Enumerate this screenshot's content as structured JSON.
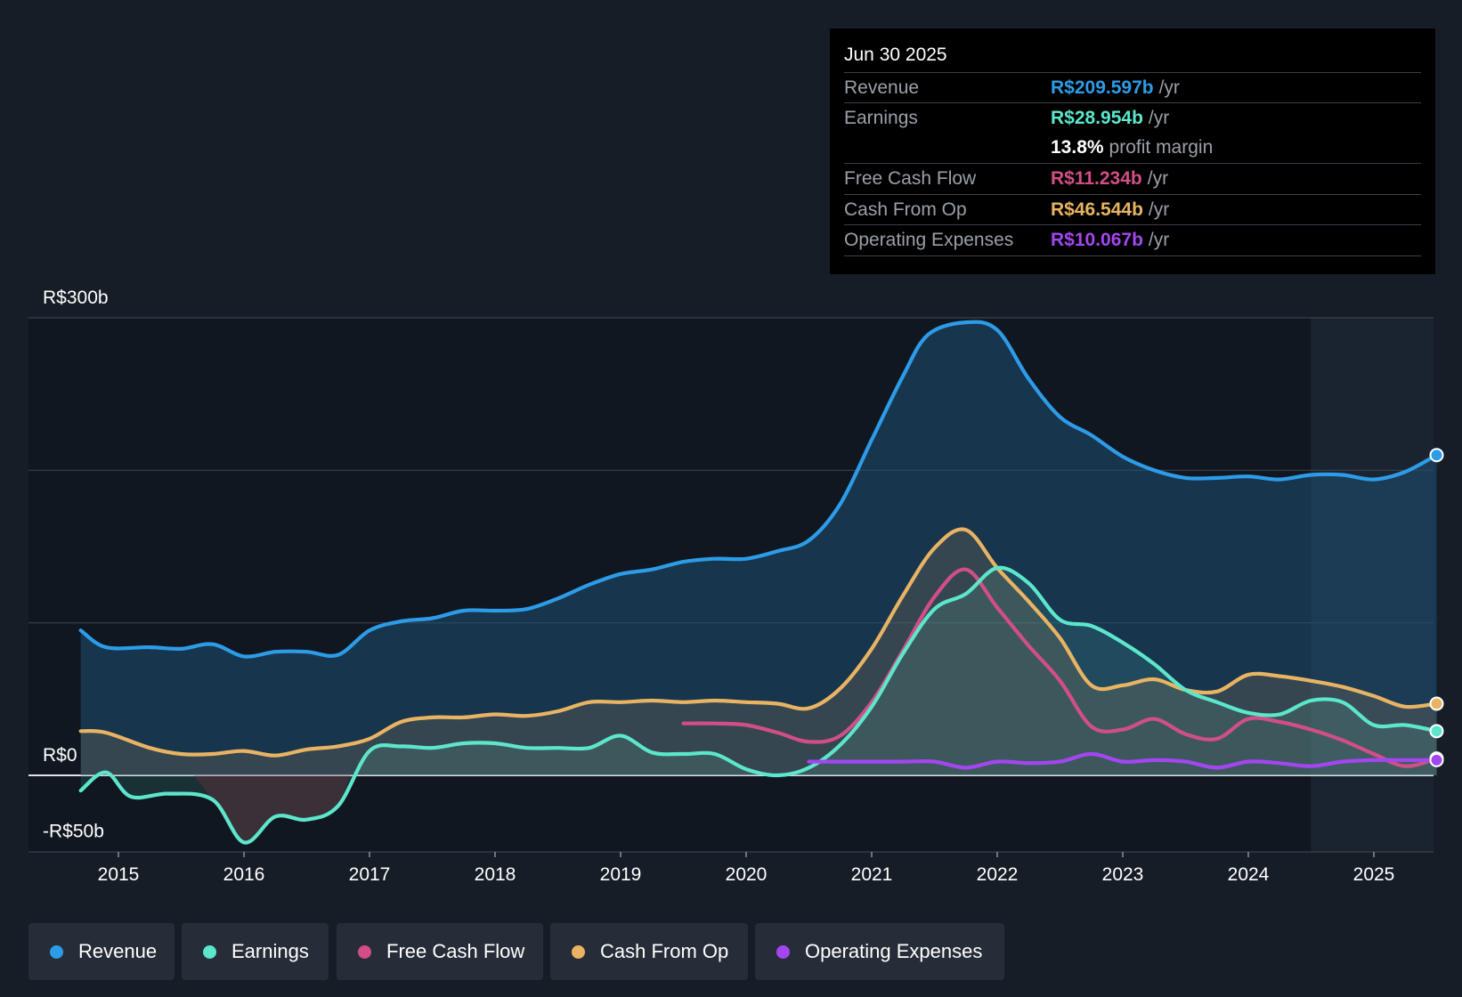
{
  "chart_data": {
    "type": "area",
    "title": "",
    "ylabel": "",
    "xlabel": "",
    "ylim": [
      -50,
      300
    ],
    "xlim": [
      2014.55,
      2025.75
    ],
    "y_tick_labels": [
      {
        "value": 300,
        "label": "R$300b"
      },
      {
        "value": 0,
        "label": "R$0"
      },
      {
        "value": -50,
        "label": "-R$50b"
      }
    ],
    "gridlines": [
      300,
      200,
      100,
      0
    ],
    "x_ticks": [
      "2015",
      "2016",
      "2017",
      "2018",
      "2019",
      "2020",
      "2021",
      "2022",
      "2023",
      "2024",
      "2025"
    ],
    "forecast_shade_start": 2024.5,
    "series": [
      {
        "name": "Revenue",
        "color": "#2d9ce8",
        "fill": true,
        "points": [
          [
            2014.7,
            95
          ],
          [
            2014.9,
            84
          ],
          [
            2015.25,
            84
          ],
          [
            2015.5,
            83
          ],
          [
            2015.75,
            86
          ],
          [
            2016.0,
            78
          ],
          [
            2016.25,
            81
          ],
          [
            2016.5,
            81
          ],
          [
            2016.75,
            79
          ],
          [
            2017.0,
            95
          ],
          [
            2017.25,
            101
          ],
          [
            2017.5,
            103
          ],
          [
            2017.75,
            108
          ],
          [
            2018.0,
            108
          ],
          [
            2018.25,
            109
          ],
          [
            2018.5,
            116
          ],
          [
            2018.75,
            125
          ],
          [
            2019.0,
            132
          ],
          [
            2019.25,
            135
          ],
          [
            2019.5,
            140
          ],
          [
            2019.75,
            142
          ],
          [
            2020.0,
            142
          ],
          [
            2020.25,
            147
          ],
          [
            2020.5,
            154
          ],
          [
            2020.75,
            178
          ],
          [
            2021.0,
            220
          ],
          [
            2021.25,
            262
          ],
          [
            2021.45,
            289
          ],
          [
            2021.75,
            297
          ],
          [
            2022.0,
            292
          ],
          [
            2022.25,
            260
          ],
          [
            2022.5,
            235
          ],
          [
            2022.75,
            223
          ],
          [
            2023.0,
            209
          ],
          [
            2023.25,
            200
          ],
          [
            2023.5,
            195
          ],
          [
            2023.75,
            195
          ],
          [
            2024.0,
            196
          ],
          [
            2024.25,
            194
          ],
          [
            2024.5,
            197
          ],
          [
            2024.75,
            197
          ],
          [
            2025.0,
            194
          ],
          [
            2025.25,
            199
          ],
          [
            2025.5,
            210
          ]
        ]
      },
      {
        "name": "Earnings",
        "color": "#5ce6cb",
        "fill": true,
        "points": [
          [
            2014.7,
            -10
          ],
          [
            2014.9,
            2
          ],
          [
            2015.1,
            -14
          ],
          [
            2015.4,
            -12
          ],
          [
            2015.75,
            -16
          ],
          [
            2016.0,
            -44
          ],
          [
            2016.25,
            -27
          ],
          [
            2016.5,
            -29
          ],
          [
            2016.75,
            -20
          ],
          [
            2017.0,
            16
          ],
          [
            2017.25,
            19
          ],
          [
            2017.5,
            18
          ],
          [
            2017.75,
            21
          ],
          [
            2018.0,
            21
          ],
          [
            2018.25,
            18
          ],
          [
            2018.5,
            18
          ],
          [
            2018.75,
            18
          ],
          [
            2019.0,
            26
          ],
          [
            2019.25,
            15
          ],
          [
            2019.5,
            14
          ],
          [
            2019.75,
            14
          ],
          [
            2020.0,
            4
          ],
          [
            2020.25,
            0
          ],
          [
            2020.5,
            5
          ],
          [
            2020.75,
            20
          ],
          [
            2021.0,
            45
          ],
          [
            2021.25,
            80
          ],
          [
            2021.5,
            109
          ],
          [
            2021.75,
            119
          ],
          [
            2022.0,
            136
          ],
          [
            2022.25,
            126
          ],
          [
            2022.5,
            102
          ],
          [
            2022.75,
            98
          ],
          [
            2023.0,
            87
          ],
          [
            2023.25,
            73
          ],
          [
            2023.5,
            56
          ],
          [
            2023.75,
            48
          ],
          [
            2024.0,
            41
          ],
          [
            2024.25,
            40
          ],
          [
            2024.5,
            49
          ],
          [
            2024.75,
            48
          ],
          [
            2025.0,
            33
          ],
          [
            2025.25,
            33
          ],
          [
            2025.5,
            29
          ]
        ]
      },
      {
        "name": "Free Cash Flow",
        "color": "#d14f86",
        "fill": false,
        "points": [
          [
            2019.5,
            34
          ],
          [
            2019.75,
            34
          ],
          [
            2020.0,
            33
          ],
          [
            2020.25,
            28
          ],
          [
            2020.5,
            22
          ],
          [
            2020.75,
            26
          ],
          [
            2021.0,
            48
          ],
          [
            2021.25,
            82
          ],
          [
            2021.5,
            117
          ],
          [
            2021.75,
            135
          ],
          [
            2022.0,
            110
          ],
          [
            2022.25,
            85
          ],
          [
            2022.5,
            62
          ],
          [
            2022.75,
            32
          ],
          [
            2023.0,
            30
          ],
          [
            2023.25,
            37
          ],
          [
            2023.5,
            27
          ],
          [
            2023.75,
            24
          ],
          [
            2024.0,
            37
          ],
          [
            2024.25,
            35
          ],
          [
            2024.5,
            30
          ],
          [
            2024.75,
            23
          ],
          [
            2025.0,
            14
          ],
          [
            2025.25,
            6
          ],
          [
            2025.5,
            11
          ]
        ]
      },
      {
        "name": "Cash From Op",
        "color": "#e8b463",
        "fill": true,
        "points": [
          [
            2014.7,
            29
          ],
          [
            2014.9,
            28
          ],
          [
            2015.25,
            18
          ],
          [
            2015.5,
            14
          ],
          [
            2015.75,
            14
          ],
          [
            2016.0,
            16
          ],
          [
            2016.25,
            13
          ],
          [
            2016.5,
            17
          ],
          [
            2016.75,
            19
          ],
          [
            2017.0,
            24
          ],
          [
            2017.25,
            35
          ],
          [
            2017.5,
            38
          ],
          [
            2017.75,
            38
          ],
          [
            2018.0,
            40
          ],
          [
            2018.25,
            39
          ],
          [
            2018.5,
            42
          ],
          [
            2018.75,
            48
          ],
          [
            2019.0,
            48
          ],
          [
            2019.25,
            49
          ],
          [
            2019.5,
            48
          ],
          [
            2019.75,
            49
          ],
          [
            2020.0,
            48
          ],
          [
            2020.25,
            47
          ],
          [
            2020.5,
            44
          ],
          [
            2020.75,
            57
          ],
          [
            2021.0,
            83
          ],
          [
            2021.25,
            118
          ],
          [
            2021.5,
            149
          ],
          [
            2021.75,
            161
          ],
          [
            2022.0,
            136
          ],
          [
            2022.25,
            114
          ],
          [
            2022.5,
            90
          ],
          [
            2022.75,
            59
          ],
          [
            2023.0,
            59
          ],
          [
            2023.25,
            63
          ],
          [
            2023.5,
            56
          ],
          [
            2023.75,
            55
          ],
          [
            2024.0,
            66
          ],
          [
            2024.25,
            65
          ],
          [
            2024.5,
            62
          ],
          [
            2024.75,
            58
          ],
          [
            2025.0,
            52
          ],
          [
            2025.25,
            45
          ],
          [
            2025.5,
            47
          ]
        ]
      },
      {
        "name": "Operating Expenses",
        "color": "#a446f0",
        "fill": false,
        "points": [
          [
            2020.5,
            9
          ],
          [
            2020.75,
            9
          ],
          [
            2021.0,
            9
          ],
          [
            2021.25,
            9
          ],
          [
            2021.5,
            9
          ],
          [
            2021.75,
            5
          ],
          [
            2022.0,
            9
          ],
          [
            2022.25,
            8
          ],
          [
            2022.5,
            9
          ],
          [
            2022.75,
            14
          ],
          [
            2023.0,
            9
          ],
          [
            2023.25,
            10
          ],
          [
            2023.5,
            9
          ],
          [
            2023.75,
            5
          ],
          [
            2024.0,
            9
          ],
          [
            2024.25,
            8
          ],
          [
            2024.5,
            6
          ],
          [
            2024.75,
            9
          ],
          [
            2025.0,
            10
          ],
          [
            2025.25,
            10
          ],
          [
            2025.5,
            10
          ]
        ]
      }
    ]
  },
  "tooltip": {
    "date": "Jun 30 2025",
    "rows": [
      {
        "label": "Revenue",
        "value": "R$209.597b",
        "unit": "/yr",
        "color": "#2d9ce8"
      },
      {
        "label": "Earnings",
        "value": "R$28.954b",
        "unit": "/yr",
        "color": "#5ce6cb"
      },
      {
        "label": "",
        "value": "13.8%",
        "unit": "profit margin",
        "color": "#ffffff"
      },
      {
        "label": "Free Cash Flow",
        "value": "R$11.234b",
        "unit": "/yr",
        "color": "#d14f86"
      },
      {
        "label": "Cash From Op",
        "value": "R$46.544b",
        "unit": "/yr",
        "color": "#e8b463"
      },
      {
        "label": "Operating Expenses",
        "value": "R$10.067b",
        "unit": "/yr",
        "color": "#a446f0"
      }
    ]
  },
  "legend": {
    "items": [
      {
        "label": "Revenue",
        "color": "#2d9ce8"
      },
      {
        "label": "Earnings",
        "color": "#5ce6cb"
      },
      {
        "label": "Free Cash Flow",
        "color": "#d14f86"
      },
      {
        "label": "Cash From Op",
        "color": "#e8b463"
      },
      {
        "label": "Operating Expenses",
        "color": "#a446f0"
      }
    ]
  }
}
